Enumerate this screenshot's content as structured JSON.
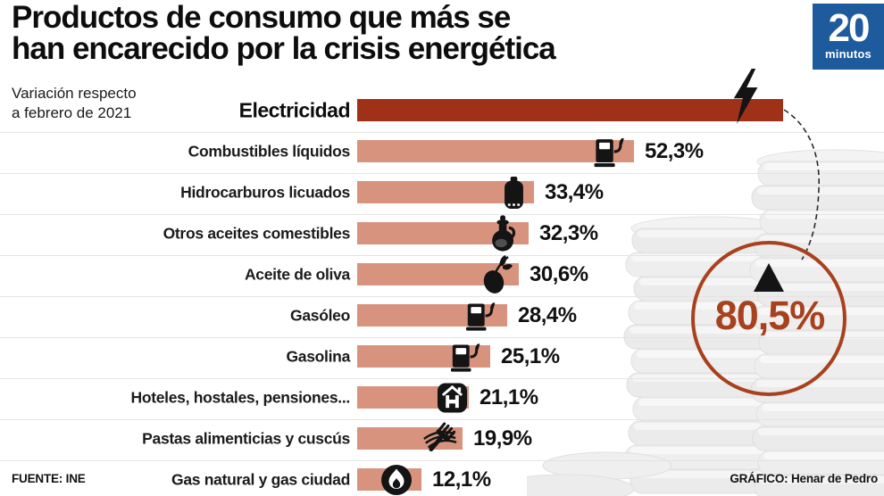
{
  "branding": {
    "logo_line1": "20",
    "logo_line2": "minutos",
    "logo_bg": "#1e5b9c"
  },
  "chart_data": {
    "type": "bar",
    "orientation": "horizontal",
    "title": "Productos de consumo que más se han encarecido por la crisis energética",
    "title_lines": [
      "Productos de consumo que más se",
      "han encarecido por la crisis energética"
    ],
    "subtitle": "Variación respecto a febrero de 2021",
    "subtitle_lines": [
      "Variación respecto",
      "a febrero de 2021"
    ],
    "unit": "%",
    "xlim": [
      0,
      85
    ],
    "grid": false,
    "legend": false,
    "categories": [
      "Electricidad",
      "Combustibles líquidos",
      "Hidrocarburos licuados",
      "Otros aceites comestibles",
      "Aceite de oliva",
      "Gasóleo",
      "Gasolina",
      "Hoteles, hostales, pensiones...",
      "Pastas alimenticias y cuscús",
      "Gas natural y gas ciudad"
    ],
    "values": [
      80.5,
      52.3,
      33.4,
      32.3,
      30.6,
      28.4,
      25.1,
      21.1,
      19.9,
      12.1
    ],
    "rows": [
      {
        "label": "Electricidad",
        "value": 80.5,
        "display": "80,5%",
        "icon": "lightning-icon",
        "highlight": true
      },
      {
        "label": "Combustibles líquidos",
        "value": 52.3,
        "display": "52,3%",
        "icon": "fuel-pump-icon",
        "highlight": false
      },
      {
        "label": "Hidrocarburos licuados",
        "value": 33.4,
        "display": "33,4%",
        "icon": "gas-cylinder-icon",
        "highlight": false
      },
      {
        "label": "Otros aceites comestibles",
        "value": 32.3,
        "display": "32,3%",
        "icon": "oil-cruet-icon",
        "highlight": false
      },
      {
        "label": "Aceite de oliva",
        "value": 30.6,
        "display": "30,6%",
        "icon": "olive-icon",
        "highlight": false
      },
      {
        "label": "Gasóleo",
        "value": 28.4,
        "display": "28,4%",
        "icon": "fuel-pump-icon",
        "highlight": false
      },
      {
        "label": "Gasolina",
        "value": 25.1,
        "display": "25,1%",
        "icon": "fuel-pump-icon",
        "highlight": false
      },
      {
        "label": "Hoteles, hostales, pensiones...",
        "value": 21.1,
        "display": "21,1%",
        "icon": "hotel-icon",
        "highlight": false
      },
      {
        "label": "Pastas alimenticias y cuscús",
        "value": 19.9,
        "display": "19,9%",
        "icon": "pasta-fork-icon",
        "highlight": false
      },
      {
        "label": "Gas natural y gas ciudad",
        "value": 12.1,
        "display": "12,1%",
        "icon": "flame-icon",
        "highlight": false
      }
    ],
    "callout": {
      "display": "80,5%",
      "direction": "up",
      "refers_to": "Electricidad"
    },
    "colors": {
      "bar_highlight": "#9e3118",
      "bar": "#d8937e",
      "callout_accent": "#a8411d",
      "text": "#111111"
    },
    "source": "FUENTE: INE",
    "credit": "GRÁFICO: Henar de Pedro"
  }
}
